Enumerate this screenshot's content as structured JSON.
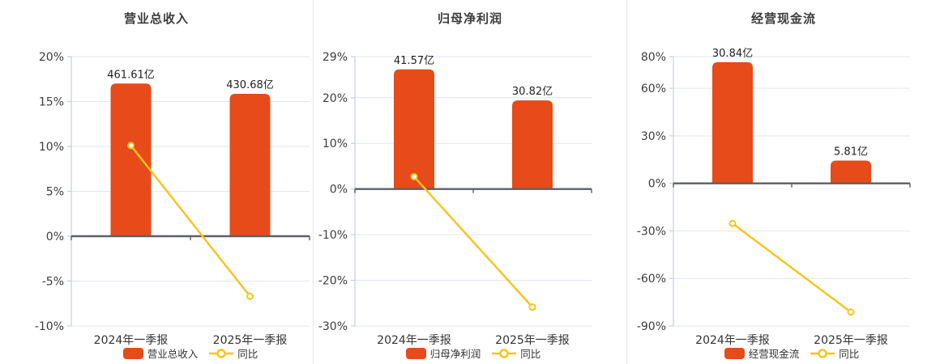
{
  "colors": {
    "bar": "#e64b19",
    "line": "#f6c51f",
    "grid": "#e0e5f1",
    "axis_line": "#c9ced9",
    "zero_axis": "#5c5f66",
    "tick_text": "#3d3d3d",
    "category_text": "#333333",
    "value_label_text": "#222222",
    "title_text": "#3c3c3c",
    "marker_fill": "#ffffff",
    "background": "#ffffff"
  },
  "chart_data": [
    {
      "type": "combo_bar_line",
      "title": "营业总收入",
      "categories": [
        "2024年一季报",
        "2025年一季报"
      ],
      "y_ticks": [
        "20%",
        "15%",
        "10%",
        "5%",
        "0%",
        "-5%",
        "-10%"
      ],
      "y_tick_values": [
        20,
        15,
        10,
        5,
        0,
        -5,
        -10
      ],
      "ylim": [
        -10,
        20
      ],
      "bars": {
        "name": "营业总收入",
        "values_yi": [
          461.61,
          430.68
        ],
        "labels": [
          "461.61亿",
          "430.68亿"
        ],
        "plotted_pct": [
          17.0,
          15.86
        ]
      },
      "line": {
        "name": "同比",
        "values_pct": [
          10.1,
          -6.7
        ]
      },
      "legend": {
        "bar": "营业总收入",
        "line": "同比"
      }
    },
    {
      "type": "combo_bar_line",
      "title": "归母净利润",
      "categories": [
        "2024年一季报",
        "2025年一季报"
      ],
      "y_ticks": [
        "29%",
        "20%",
        "10%",
        "0%",
        "-10%",
        "-20%",
        "-30%"
      ],
      "y_tick_values": [
        29,
        20,
        10,
        0,
        -10,
        -20,
        -30
      ],
      "ylim": [
        -30,
        29
      ],
      "bars": {
        "name": "归母净利润",
        "values_yi": [
          41.57,
          30.82
        ],
        "labels": [
          "41.57亿",
          "30.82亿"
        ],
        "plotted_pct": [
          26.2,
          19.4
        ]
      },
      "line": {
        "name": "同比",
        "values_pct": [
          2.7,
          -25.86
        ]
      },
      "legend": {
        "bar": "归母净利润",
        "line": "同比"
      }
    },
    {
      "type": "combo_bar_line",
      "title": "经营现金流",
      "categories": [
        "2024年一季报",
        "2025年一季报"
      ],
      "y_ticks": [
        "80%",
        "60%",
        "30%",
        "0%",
        "-30%",
        "-60%",
        "-90%"
      ],
      "y_tick_values": [
        80,
        60,
        30,
        0,
        -30,
        -60,
        -90
      ],
      "ylim": [
        -90,
        80
      ],
      "bars": {
        "name": "经营现金流",
        "values_yi": [
          30.84,
          5.81
        ],
        "labels": [
          "30.84亿",
          "5.81亿"
        ],
        "plotted_pct": [
          76.5,
          14.4
        ]
      },
      "line": {
        "name": "同比",
        "values_pct": [
          -25.3,
          -81.2
        ]
      },
      "legend": {
        "bar": "经营现金流",
        "line": "同比"
      }
    }
  ]
}
